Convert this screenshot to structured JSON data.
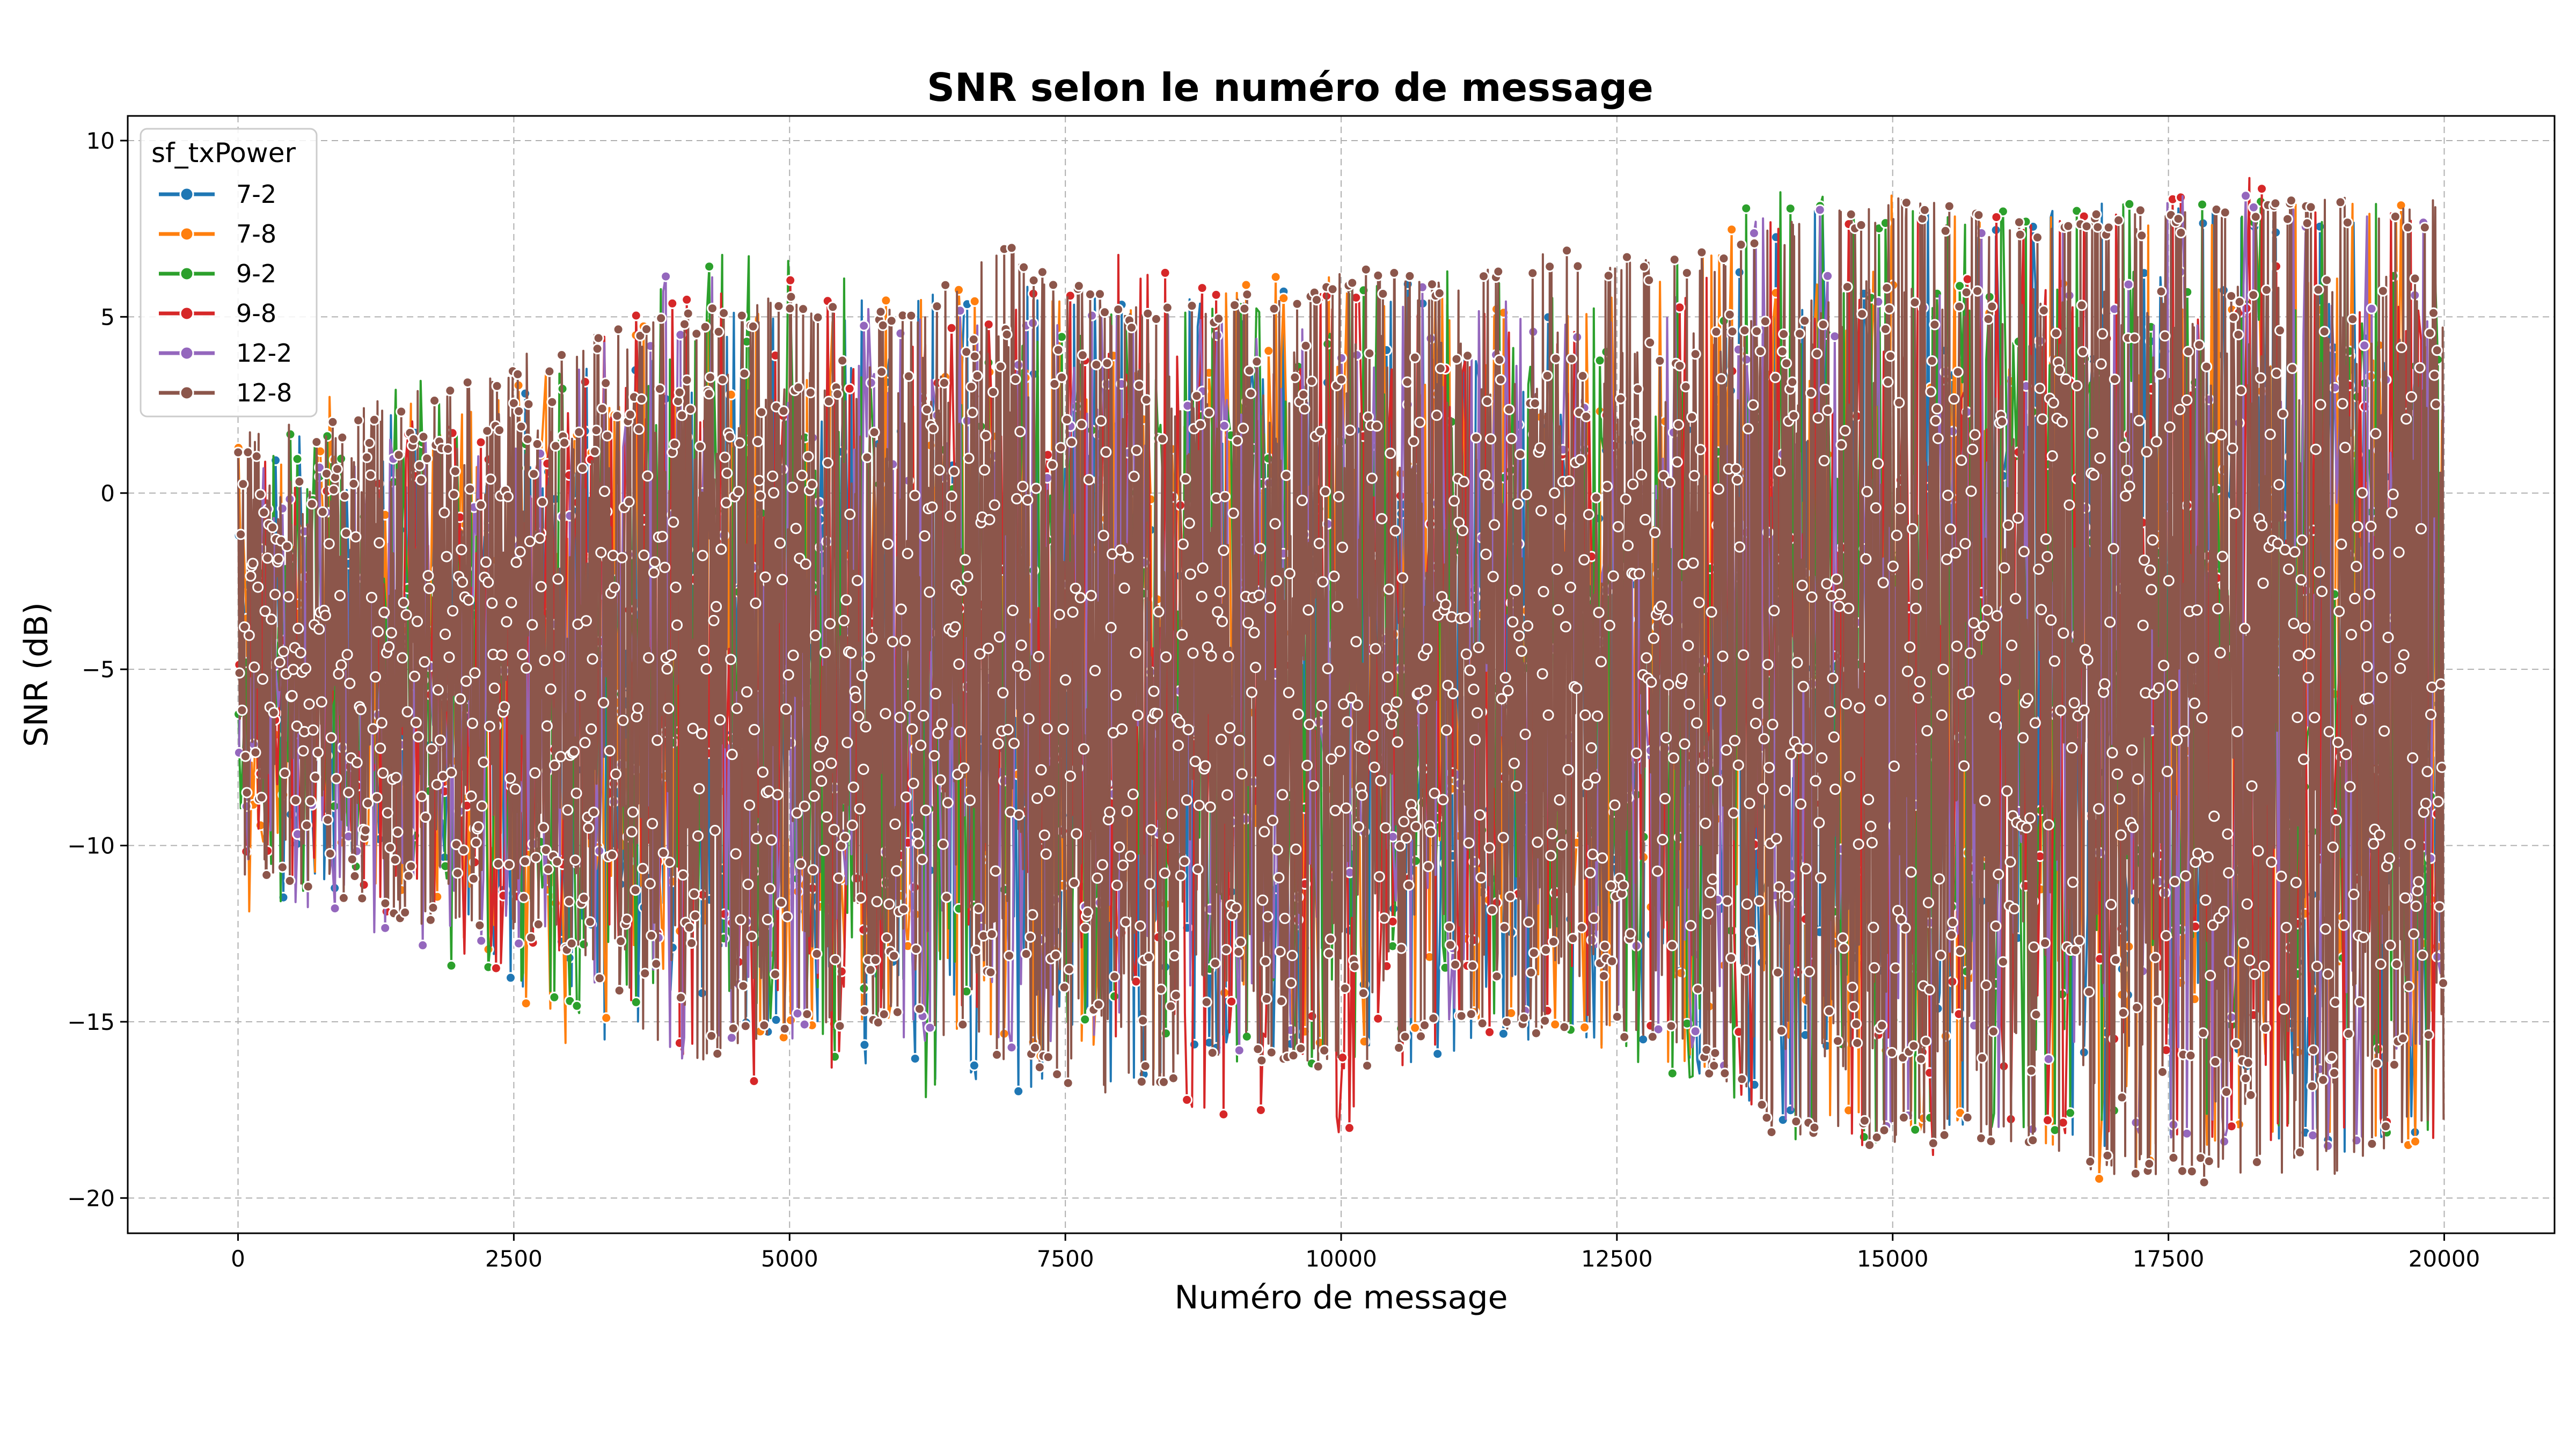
{
  "chart_data": {
    "type": "line",
    "title": "SNR selon le numéro de message",
    "xlabel": "Numéro de message",
    "ylabel": "SNR (dB)",
    "xlim": [
      -1000,
      21000
    ],
    "ylim": [
      -21,
      10.7
    ],
    "xticks": [
      0,
      2500,
      5000,
      7500,
      10000,
      12500,
      15000,
      17500,
      20000
    ],
    "xtick_labels": [
      "0",
      "2500",
      "5000",
      "7500",
      "10000",
      "12500",
      "15000",
      "17500",
      "20000"
    ],
    "yticks": [
      -20,
      -15,
      -10,
      -5,
      0,
      5,
      10
    ],
    "ytick_labels": [
      "−20",
      "−15",
      "−10",
      "−5",
      "0",
      "5",
      "10"
    ],
    "grid": true,
    "legend": {
      "title": "sf_txPower",
      "placement": "top-left"
    },
    "x_range": [
      0,
      20000
    ],
    "series": [
      {
        "name": "7-2",
        "color": "#1f77b4",
        "envelope_x": [
          0,
          1000,
          2000,
          3000,
          4000,
          5000,
          6000,
          7000,
          8000,
          9000,
          10000,
          11000,
          12000,
          13000,
          14000,
          14800,
          15000,
          16000,
          17000,
          18000,
          19000,
          20000
        ],
        "envelope_max": [
          1.2,
          2.0,
          2.6,
          3.5,
          4.8,
          5.5,
          5.6,
          6.2,
          5.5,
          5.5,
          6.0,
          5.9,
          5.0,
          5.8,
          7.5,
          9.3,
          8.4,
          8.2,
          8.6,
          8.0,
          8.2,
          8.3
        ],
        "envelope_min": [
          -11.5,
          -11.5,
          -12.0,
          -16.0,
          -14.5,
          -15.5,
          -16.5,
          -17.2,
          -17.2,
          -15.8,
          -16.5,
          -16.0,
          -15.5,
          -16.0,
          -18.0,
          -18.6,
          -18.4,
          -18.4,
          -18.6,
          -18.6,
          -18.8,
          -18.2
        ]
      },
      {
        "name": "7-8",
        "color": "#ff7f0e",
        "envelope_x": [
          0,
          1000,
          2000,
          3000,
          4000,
          5000,
          6000,
          7000,
          8000,
          9000,
          10000,
          11000,
          12000,
          13000,
          14000,
          14800,
          15000,
          16000,
          17000,
          18000,
          19000,
          20000
        ],
        "envelope_max": [
          1.3,
          3.6,
          2.2,
          3.8,
          5.3,
          5.6,
          5.5,
          6.0,
          5.9,
          6.2,
          6.2,
          5.5,
          5.4,
          6.9,
          8.0,
          8.7,
          8.5,
          8.2,
          8.4,
          8.3,
          8.3,
          8.2
        ],
        "envelope_min": [
          -12.0,
          -11.2,
          -12.5,
          -15.8,
          -15.0,
          -15.6,
          -15.0,
          -15.8,
          -16.6,
          -16.0,
          -15.8,
          -15.5,
          -15.5,
          -16.3,
          -18.0,
          -18.3,
          -18.3,
          -18.3,
          -19.7,
          -18.5,
          -18.8,
          -18.5
        ]
      },
      {
        "name": "9-2",
        "color": "#2ca02c",
        "envelope_x": [
          0,
          1000,
          2000,
          3000,
          4000,
          5000,
          6000,
          7000,
          8000,
          9000,
          10000,
          11000,
          12000,
          13000,
          14000,
          14800,
          15000,
          16000,
          17000,
          18000,
          19000,
          20000
        ],
        "envelope_max": [
          0.9,
          3.5,
          3.1,
          3.6,
          7.0,
          7.2,
          5.1,
          4.2,
          5.8,
          5.7,
          6.5,
          6.6,
          5.6,
          6.5,
          8.9,
          8.3,
          8.1,
          8.0,
          8.5,
          8.3,
          8.3,
          9.2
        ],
        "envelope_min": [
          -12.6,
          -11.0,
          -13.6,
          -15.0,
          -14.5,
          -15.3,
          -17.9,
          -15.6,
          -15.0,
          -16.2,
          -16.2,
          -15.5,
          -15.2,
          -16.9,
          -18.5,
          -18.5,
          -18.3,
          -18.3,
          -18.3,
          -18.3,
          -18.4,
          -18.4
        ]
      },
      {
        "name": "9-8",
        "color": "#d62728",
        "envelope_x": [
          0,
          1000,
          2000,
          3000,
          4000,
          5000,
          6000,
          7000,
          8000,
          9000,
          10000,
          11000,
          12000,
          13000,
          14000,
          14800,
          15000,
          16000,
          17000,
          18000,
          19000,
          20000
        ],
        "envelope_max": [
          1.0,
          2.0,
          2.4,
          4.7,
          5.5,
          6.2,
          4.7,
          5.6,
          6.8,
          5.8,
          5.6,
          5.8,
          4.7,
          5.2,
          8.4,
          8.2,
          8.3,
          8.2,
          8.0,
          9.2,
          8.1,
          8.1
        ],
        "envelope_min": [
          -11.5,
          -11.5,
          -13.9,
          -13.0,
          -16.0,
          -17.1,
          -15.0,
          -15.5,
          -16.0,
          -18.2,
          -18.5,
          -15.5,
          -15.0,
          -16.0,
          -18.5,
          -18.5,
          -19.0,
          -18.5,
          -18.5,
          -18.5,
          -18.5,
          -18.5
        ]
      },
      {
        "name": "12-2",
        "color": "#9467bd",
        "envelope_x": [
          0,
          1000,
          2000,
          3000,
          4000,
          5000,
          6000,
          7000,
          8000,
          9000,
          10000,
          11000,
          12000,
          13000,
          14000,
          14800,
          15000,
          16000,
          17000,
          18000,
          19000,
          20000
        ],
        "envelope_max": [
          1.3,
          1.3,
          2.4,
          3.5,
          6.8,
          5.4,
          5.3,
          5.4,
          5.2,
          5.0,
          5.6,
          6.3,
          4.8,
          5.8,
          8.4,
          8.4,
          8.0,
          8.0,
          8.3,
          8.7,
          8.1,
          8.3
        ],
        "envelope_min": [
          -11.0,
          -12.5,
          -13.0,
          -14.0,
          -16.2,
          -15.5,
          -15.5,
          -16.0,
          -15.5,
          -16.0,
          -15.5,
          -15.2,
          -15.0,
          -15.5,
          -18.0,
          -18.4,
          -18.2,
          -18.2,
          -18.4,
          -18.4,
          -18.8,
          -18.2
        ]
      },
      {
        "name": "12-8",
        "color": "#8c564b",
        "envelope_x": [
          0,
          1000,
          2000,
          3000,
          4000,
          5000,
          6000,
          7000,
          8000,
          9000,
          10000,
          11000,
          12000,
          13000,
          14000,
          14800,
          15000,
          16000,
          17000,
          18000,
          19000,
          20000
        ],
        "envelope_max": [
          1.7,
          2.4,
          3.4,
          4.4,
          5.2,
          5.6,
          5.3,
          7.1,
          5.4,
          5.6,
          6.4,
          6.2,
          6.9,
          6.6,
          7.8,
          8.4,
          8.4,
          8.0,
          8.0,
          8.2,
          8.4,
          8.3
        ],
        "envelope_min": [
          -10.8,
          -11.6,
          -12.6,
          -13.0,
          -16.3,
          -15.3,
          -15.2,
          -16.3,
          -17.2,
          -16.0,
          -16.5,
          -15.5,
          -15.5,
          -15.5,
          -18.5,
          -18.5,
          -18.5,
          -18.5,
          -19.5,
          -19.6,
          -19.4,
          -18.0
        ]
      }
    ]
  }
}
